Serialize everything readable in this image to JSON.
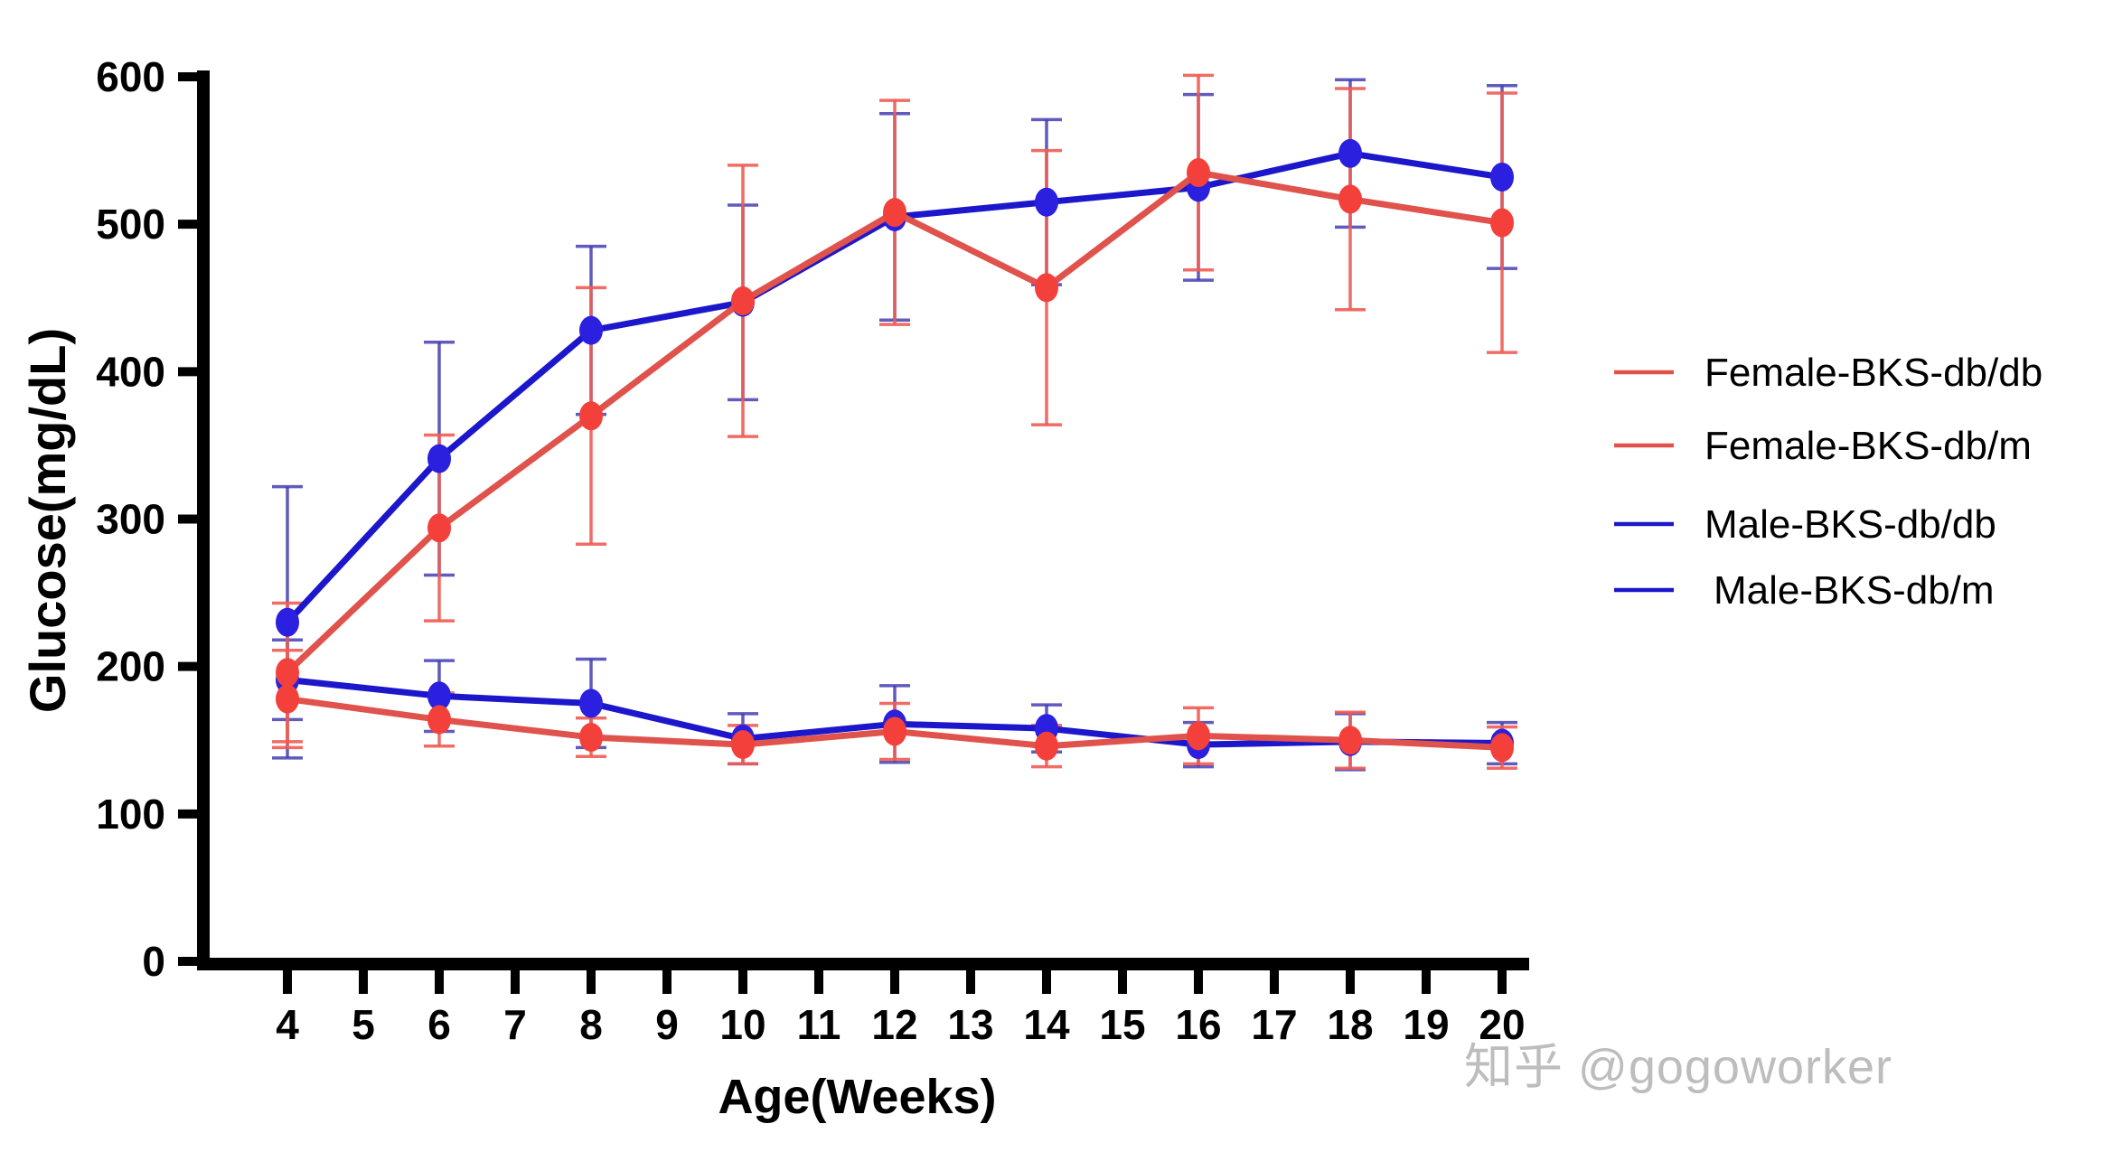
{
  "watermark": {
    "text": "知乎 @gogoworker"
  },
  "chart_data": {
    "type": "line",
    "title": "",
    "xlabel": "Age(Weeks)",
    "ylabel": "Glucose(mg/dL)",
    "x": [
      4,
      6,
      8,
      10,
      12,
      14,
      16,
      18,
      20
    ],
    "x_tick_labels": [
      "4",
      "5",
      "6",
      "7",
      "8",
      "9",
      "10",
      "11",
      "12",
      "13",
      "14",
      "15",
      "16",
      "17",
      "18",
      "19",
      "20"
    ],
    "y_ticks": [
      0,
      100,
      200,
      300,
      400,
      500,
      600
    ],
    "ylim": [
      0,
      600
    ],
    "xlim": [
      2.9,
      20.4
    ],
    "grid": false,
    "legend_position": "right-center",
    "marker": "circle",
    "error_bars": "sd",
    "series": [
      {
        "name": "Female-BKS-db/db",
        "sex": "Female",
        "genotype": "db/db",
        "color": "#E0524C",
        "marker_color": "#F4403A",
        "errorbar_color": "rgba(238,92,84,0.9)",
        "values": [
          196,
          294,
          370,
          448,
          508,
          457,
          535,
          517,
          501
        ],
        "sd": [
          47,
          63,
          87,
          92,
          76,
          93,
          66,
          75,
          88
        ]
      },
      {
        "name": "Female-BKS-db/m",
        "sex": "Female",
        "genotype": "db/m",
        "color": "#E0524C",
        "marker_color": "#F4403A",
        "errorbar_color": "rgba(238,92,84,0.9)",
        "values": [
          178,
          164,
          152,
          147,
          156,
          146,
          153,
          150,
          145
        ],
        "sd": [
          33,
          18,
          13,
          13,
          19,
          14,
          19,
          19,
          14
        ]
      },
      {
        "name": "Male-BKS-db/db",
        "sex": "Male",
        "genotype": "db/db",
        "color": "#1C17CB",
        "marker_color": "#2B1FE0",
        "errorbar_color": "rgba(68,62,178,0.85)",
        "values": [
          230,
          341,
          428,
          447,
          505,
          515,
          525,
          548,
          532
        ],
        "sd": [
          92,
          79,
          57,
          66,
          70,
          56,
          63,
          50,
          62
        ]
      },
      {
        "name": "Male-BKS-db/m",
        "sex": "Male",
        "genotype": "db/m",
        "color": "#1C17CB",
        "marker_color": "#2B1FE0",
        "errorbar_color": "rgba(68,62,178,0.85)",
        "values": [
          191,
          180,
          175,
          151,
          161,
          158,
          147,
          149,
          148
        ],
        "sd": [
          27,
          24,
          30,
          17,
          26,
          16,
          15,
          19,
          14
        ]
      }
    ]
  }
}
